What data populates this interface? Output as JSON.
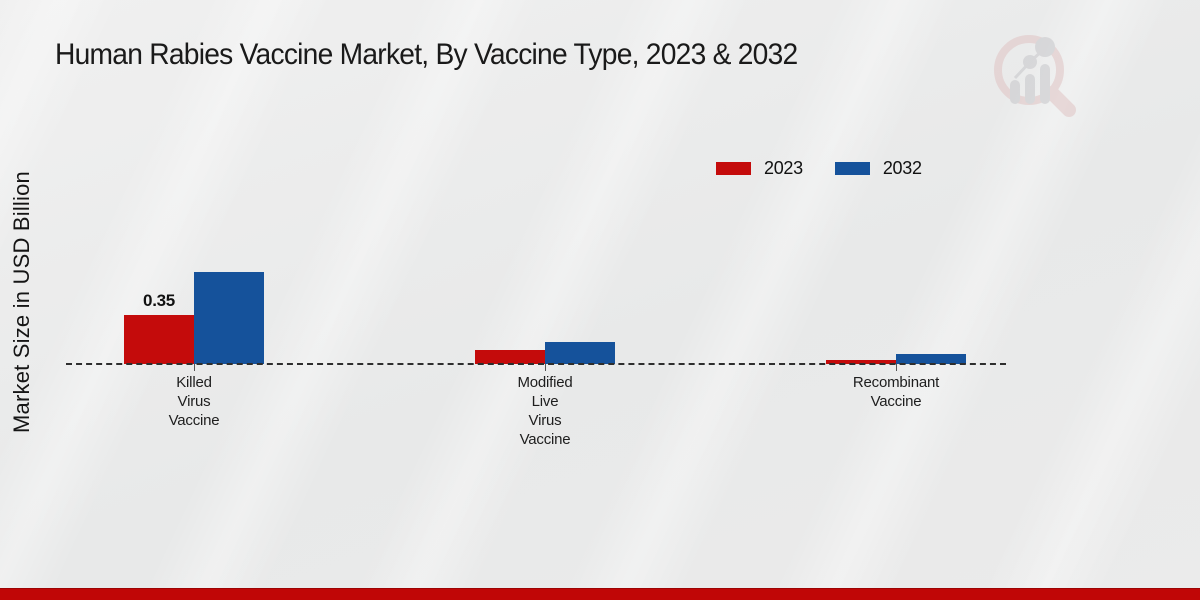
{
  "title": "Human Rabies Vaccine Market, By Vaccine Type, 2023 & 2032",
  "y_axis_label": "Market Size in USD Billion",
  "legend": [
    {
      "label": "2023",
      "color": "#c40b0b"
    },
    {
      "label": "2032",
      "color": "#15529b"
    }
  ],
  "colors": {
    "bar_2023": "#c40b0b",
    "bar_2032": "#15529b",
    "footer_bar": "#c00606",
    "baseline": "#2e2e2e",
    "background": "#e9eaea"
  },
  "chart_data": {
    "type": "bar",
    "title": "Human Rabies Vaccine Market, By Vaccine Type, 2023 & 2032",
    "ylabel": "Market Size in USD Billion",
    "xlabel": "",
    "categories": [
      "Killed Virus Vaccine",
      "Modified Live Virus Vaccine",
      "Recombinant Vaccine"
    ],
    "category_label_lines": [
      [
        "Killed",
        "Virus",
        "Vaccine"
      ],
      [
        "Modified",
        "Live",
        "Virus",
        "Vaccine"
      ],
      [
        "Recombinant",
        "Vaccine"
      ]
    ],
    "series": [
      {
        "name": "2023",
        "color": "#c40b0b",
        "values": [
          0.35,
          0.1,
          0.03
        ],
        "data_labels": [
          "0.35",
          "",
          ""
        ]
      },
      {
        "name": "2032",
        "color": "#15529b",
        "values": [
          0.66,
          0.16,
          0.07
        ],
        "data_labels": [
          "",
          "",
          ""
        ]
      }
    ],
    "baseline_value": 0,
    "grid": false,
    "axis_ticks_shown": false,
    "baseline_style": "dashed",
    "legend_position": "top-right"
  }
}
